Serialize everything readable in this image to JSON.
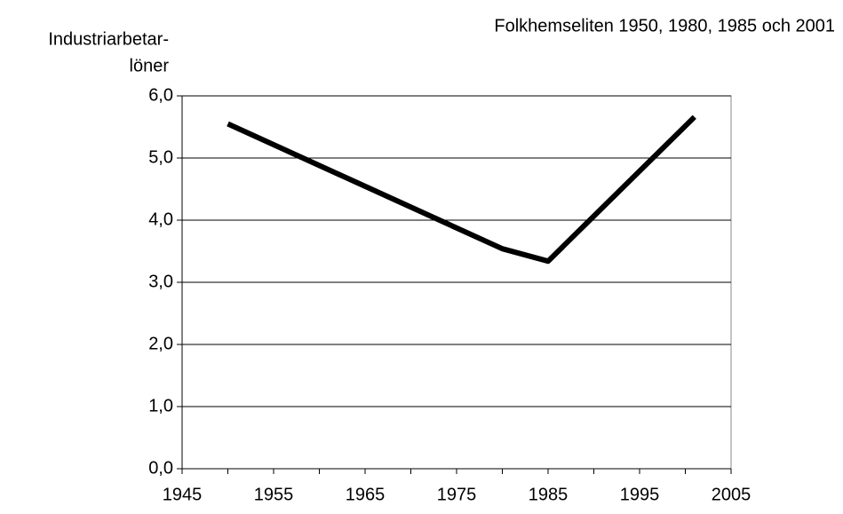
{
  "chart_data": {
    "type": "line",
    "title": "Folkhemseliten 1950, 1980, 1985 och 2001",
    "ylabel_lines": [
      "Industriarbetar-",
      "löner"
    ],
    "x": [
      1950,
      1980,
      1985,
      2001
    ],
    "series": [
      {
        "color": "#000000",
        "values": [
          5.55,
          3.54,
          3.34,
          5.66
        ]
      }
    ],
    "xlim": [
      1945,
      2005
    ],
    "xticks": [
      1945,
      1955,
      1965,
      1975,
      1985,
      1995,
      2005
    ],
    "xminor_ticks": [
      1950,
      1960,
      1970,
      1980,
      1990,
      2000
    ],
    "ylim": [
      0,
      6
    ],
    "yticks": [
      {
        "value": 0,
        "label": "0,0"
      },
      {
        "value": 1,
        "label": "1,0"
      },
      {
        "value": 2,
        "label": "2,0"
      },
      {
        "value": 3,
        "label": "3,0"
      },
      {
        "value": 4,
        "label": "4,0"
      },
      {
        "value": 5,
        "label": "5,0"
      },
      {
        "value": 6,
        "label": "6,0"
      }
    ],
    "grid": true
  }
}
